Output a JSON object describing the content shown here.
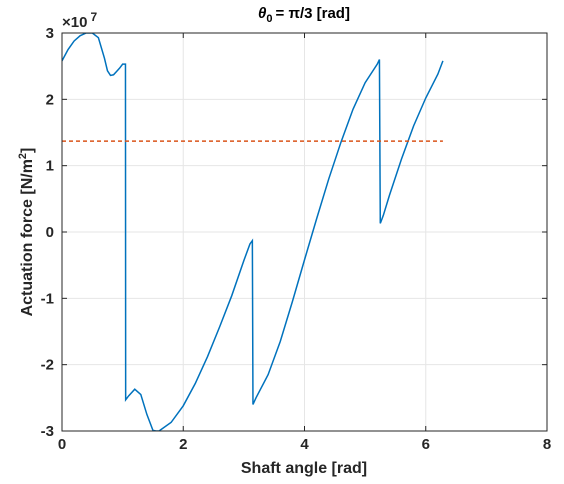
{
  "chart_data": {
    "type": "line",
    "title": {
      "symbol": "θ",
      "subscript": "0",
      "text": "= π/3 [rad]"
    },
    "xlabel": "Shaft angle [rad]",
    "ylabel": {
      "text": "Actuation force [N/m",
      "superscript": "2",
      "suffix": "]"
    },
    "exponent": {
      "base": "×10",
      "power": "7"
    },
    "xlim": [
      0,
      8
    ],
    "ylim": [
      -3,
      3
    ],
    "xticks": [
      "0",
      "2",
      "4",
      "6",
      "8"
    ],
    "yticks": [
      "3",
      "2",
      "1",
      "0",
      "-1",
      "-2",
      "-3"
    ],
    "grid": true,
    "series": [
      {
        "color": "#0072BD",
        "style": "solid",
        "x": [
          0,
          0.1,
          0.2,
          0.3,
          0.4,
          0.5,
          0.6,
          0.7,
          0.75,
          0.8,
          0.85,
          0.9,
          0.95,
          1.0,
          1.02,
          1.047,
          1.05,
          1.1,
          1.2,
          1.3,
          1.4,
          1.5,
          1.55,
          1.6,
          1.8,
          2.0,
          2.2,
          2.4,
          2.6,
          2.8,
          3.0,
          3.1,
          3.14,
          3.15,
          3.2,
          3.4,
          3.6,
          3.8,
          4.0,
          4.2,
          4.4,
          4.6,
          4.8,
          5.0,
          5.2,
          5.236,
          5.25,
          5.3,
          5.4,
          5.6,
          5.8,
          6.0,
          6.2,
          6.283
        ],
        "y": [
          2.58,
          2.75,
          2.88,
          2.96,
          3.0,
          3.0,
          2.93,
          2.62,
          2.43,
          2.36,
          2.37,
          2.42,
          2.47,
          2.53,
          2.53,
          2.53,
          -2.53,
          -2.47,
          -2.37,
          -2.45,
          -2.75,
          -2.99,
          -3.0,
          -3.0,
          -2.87,
          -2.62,
          -2.28,
          -1.88,
          -1.43,
          -0.96,
          -0.43,
          -0.18,
          -0.13,
          -2.6,
          -2.5,
          -2.15,
          -1.65,
          -1.05,
          -0.42,
          0.2,
          0.8,
          1.35,
          1.85,
          2.25,
          2.53,
          2.6,
          0.13,
          0.25,
          0.55,
          1.1,
          1.6,
          2.02,
          2.38,
          2.58
        ]
      },
      {
        "color": "#D95319",
        "style": "dashed",
        "x": [
          0,
          6.283
        ],
        "y": [
          1.37,
          1.37
        ]
      }
    ]
  }
}
